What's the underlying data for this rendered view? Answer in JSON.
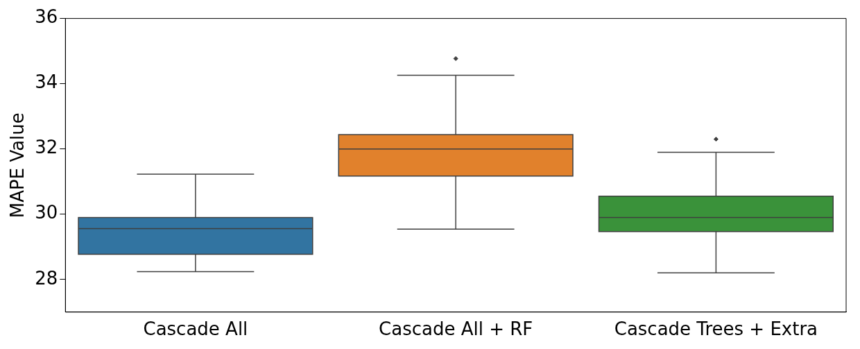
{
  "chart_data": {
    "type": "box",
    "ylabel": "MAPE Value",
    "categories": [
      "Cascade All",
      "Cascade All + RF",
      "Cascade Trees + Extra"
    ],
    "colors": [
      "#3274a1",
      "#e1812c",
      "#3a923a"
    ],
    "boxes": [
      {
        "low": 28.24,
        "q1": 28.77,
        "median": 29.56,
        "q3": 29.9,
        "high": 31.23
      },
      {
        "low": 29.54,
        "q1": 31.17,
        "median": 32.0,
        "q3": 32.44,
        "high": 34.26,
        "outliers": [
          34.77
        ]
      },
      {
        "low": 28.2,
        "q1": 29.47,
        "median": 29.9,
        "q3": 30.55,
        "high": 31.9,
        "outliers": [
          32.3
        ]
      }
    ],
    "ylim": [
      27,
      36
    ],
    "yticks": [
      28,
      30,
      32,
      34,
      36
    ],
    "grid": false,
    "legend": false
  }
}
